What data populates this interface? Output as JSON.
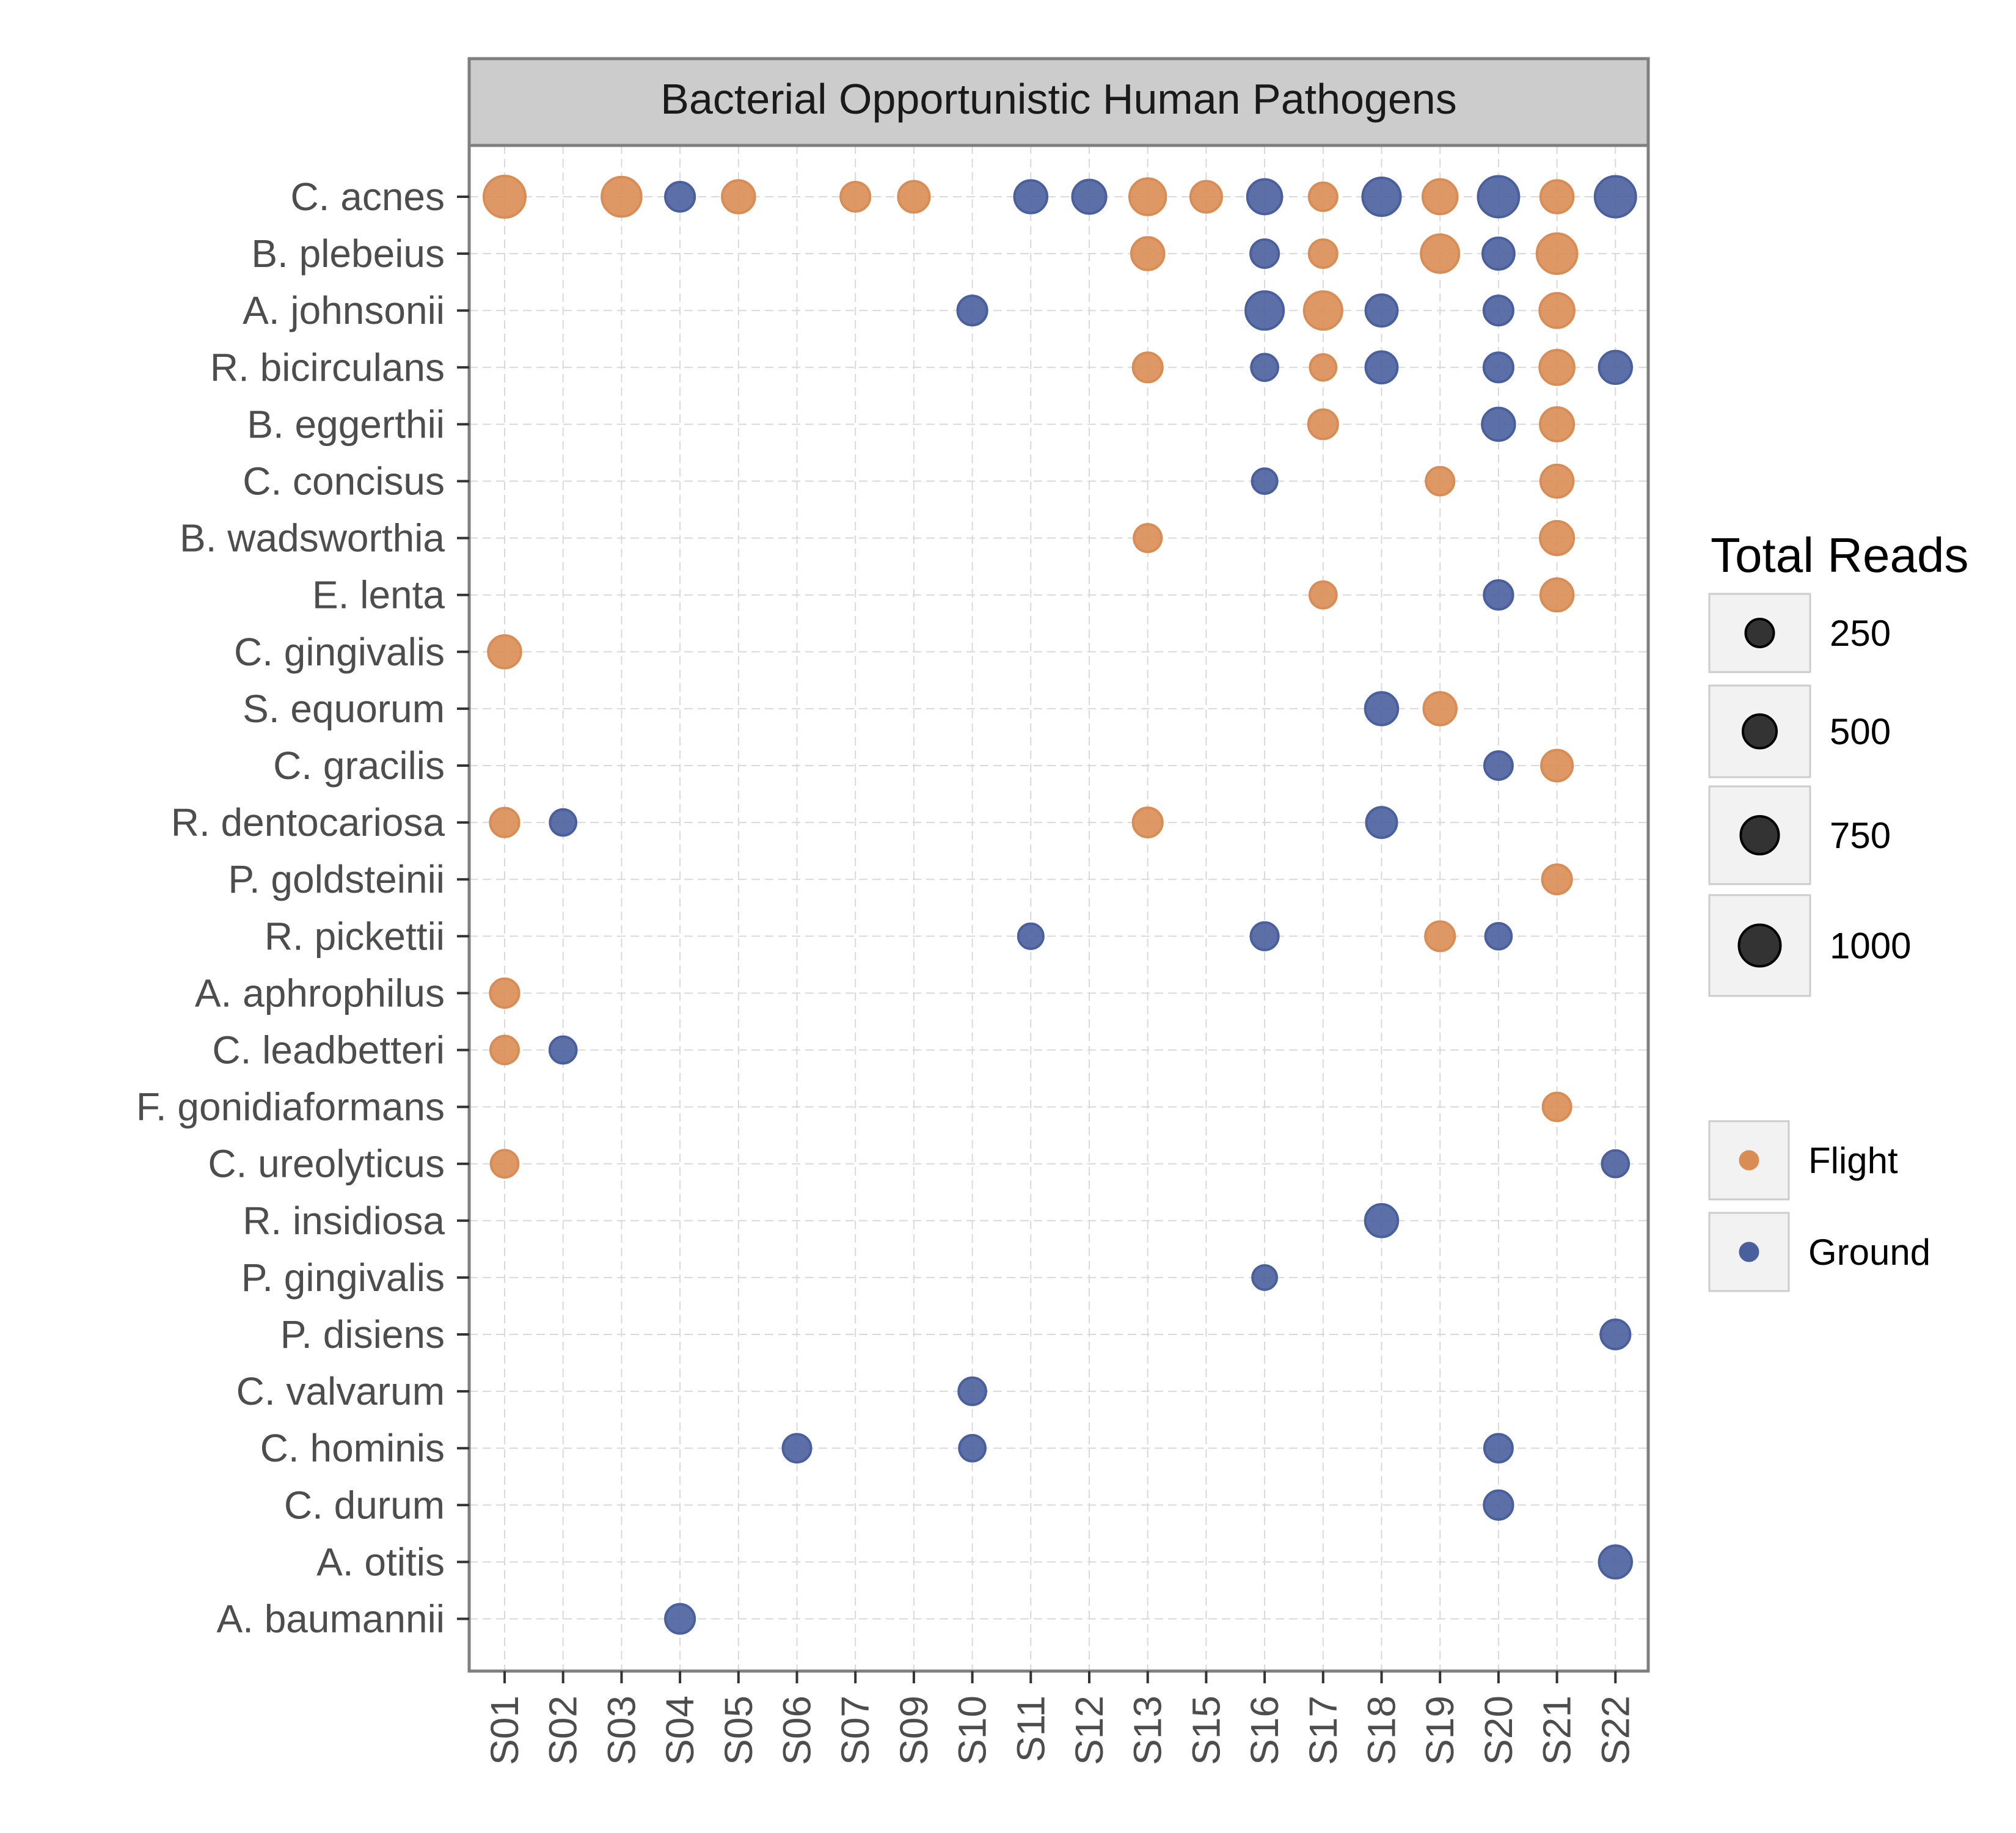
{
  "chart_data": {
    "type": "scatter",
    "title": "Bacterial Opportunistic Human Pathogens",
    "xlabel": "",
    "ylabel": "",
    "grid": true,
    "legend_placement": "right",
    "x_categories": [
      "S01",
      "S02",
      "S03",
      "S04",
      "S05",
      "S06",
      "S07",
      "S09",
      "S10",
      "S11",
      "S12",
      "S13",
      "S15",
      "S16",
      "S17",
      "S18",
      "S19",
      "S20",
      "S21",
      "S22"
    ],
    "y_categories": [
      "C. acnes",
      "B. plebeius",
      "A. johnsonii",
      "R. bicirculans",
      "B. eggerthii",
      "C. concisus",
      "B. wadsworthia",
      "E. lenta",
      "C. gingivalis",
      "S. equorum",
      "C. gracilis",
      "R. dentocariosa",
      "P. goldsteinii",
      "R. pickettii",
      "A. aphrophilus",
      "C. leadbetteri",
      "F. gonidiaformans",
      "C. ureolyticus",
      "R. insidiosa",
      "P. gingivalis",
      "P. disiens",
      "C. valvarum",
      "C. hominis",
      "C. durum",
      "A. otitis",
      "A. baumannii"
    ],
    "size_legend": {
      "title": "Total Reads",
      "values": [
        250,
        500,
        750,
        1000
      ],
      "labels": [
        "250",
        "500",
        "750",
        "1000"
      ],
      "color": "#333333"
    },
    "color_legend": [
      {
        "label": "Flight",
        "color": "#D98D55"
      },
      {
        "label": "Ground",
        "color": "#4A5F9D"
      }
    ],
    "series": [
      {
        "name": "Flight",
        "color": "#D98D55",
        "points": [
          {
            "x": "S01",
            "y": "C. acnes",
            "value": 1000
          },
          {
            "x": "S03",
            "y": "C. acnes",
            "value": 850
          },
          {
            "x": "S05",
            "y": "C. acnes",
            "value": 450
          },
          {
            "x": "S07",
            "y": "C. acnes",
            "value": 300
          },
          {
            "x": "S09",
            "y": "C. acnes",
            "value": 380
          },
          {
            "x": "S13",
            "y": "C. acnes",
            "value": 650
          },
          {
            "x": "S15",
            "y": "C. acnes",
            "value": 380
          },
          {
            "x": "S17",
            "y": "C. acnes",
            "value": 250
          },
          {
            "x": "S19",
            "y": "C. acnes",
            "value": 550
          },
          {
            "x": "S21",
            "y": "C. acnes",
            "value": 450
          },
          {
            "x": "S13",
            "y": "B. plebeius",
            "value": 450
          },
          {
            "x": "S17",
            "y": "B. plebeius",
            "value": 250
          },
          {
            "x": "S19",
            "y": "B. plebeius",
            "value": 750
          },
          {
            "x": "S21",
            "y": "B. plebeius",
            "value": 900
          },
          {
            "x": "S17",
            "y": "A. johnsonii",
            "value": 750
          },
          {
            "x": "S21",
            "y": "A. johnsonii",
            "value": 550
          },
          {
            "x": "S13",
            "y": "R. bicirculans",
            "value": 300
          },
          {
            "x": "S17",
            "y": "R. bicirculans",
            "value": 180
          },
          {
            "x": "S21",
            "y": "R. bicirculans",
            "value": 550
          },
          {
            "x": "S17",
            "y": "B. eggerthii",
            "value": 300
          },
          {
            "x": "S21",
            "y": "B. eggerthii",
            "value": 500
          },
          {
            "x": "S19",
            "y": "C. concisus",
            "value": 250
          },
          {
            "x": "S21",
            "y": "C. concisus",
            "value": 450
          },
          {
            "x": "S13",
            "y": "B. wadsworthia",
            "value": 230
          },
          {
            "x": "S21",
            "y": "B. wadsworthia",
            "value": 500
          },
          {
            "x": "S17",
            "y": "E. lenta",
            "value": 200
          },
          {
            "x": "S21",
            "y": "E. lenta",
            "value": 450
          },
          {
            "x": "S01",
            "y": "C. gingivalis",
            "value": 450
          },
          {
            "x": "S19",
            "y": "S. equorum",
            "value": 450
          },
          {
            "x": "S21",
            "y": "C. gracilis",
            "value": 380
          },
          {
            "x": "S01",
            "y": "R. dentocariosa",
            "value": 280
          },
          {
            "x": "S13",
            "y": "R. dentocariosa",
            "value": 300
          },
          {
            "x": "S21",
            "y": "P. goldsteinii",
            "value": 300
          },
          {
            "x": "S19",
            "y": "R. pickettii",
            "value": 300
          },
          {
            "x": "S01",
            "y": "A. aphrophilus",
            "value": 280
          },
          {
            "x": "S01",
            "y": "C. leadbetteri",
            "value": 250
          },
          {
            "x": "S21",
            "y": "F. gonidiaformans",
            "value": 250
          },
          {
            "x": "S01",
            "y": "C. ureolyticus",
            "value": 220
          }
        ]
      },
      {
        "name": "Ground",
        "color": "#4A5F9D",
        "points": [
          {
            "x": "S04",
            "y": "C. acnes",
            "value": 300
          },
          {
            "x": "S11",
            "y": "C. acnes",
            "value": 450
          },
          {
            "x": "S12",
            "y": "C. acnes",
            "value": 500
          },
          {
            "x": "S16",
            "y": "C. acnes",
            "value": 550
          },
          {
            "x": "S18",
            "y": "C. acnes",
            "value": 750
          },
          {
            "x": "S20",
            "y": "C. acnes",
            "value": 950
          },
          {
            "x": "S22",
            "y": "C. acnes",
            "value": 950
          },
          {
            "x": "S16",
            "y": "B. plebeius",
            "value": 250
          },
          {
            "x": "S20",
            "y": "B. plebeius",
            "value": 400
          },
          {
            "x": "S10",
            "y": "A. johnsonii",
            "value": 300
          },
          {
            "x": "S16",
            "y": "A. johnsonii",
            "value": 750
          },
          {
            "x": "S18",
            "y": "A. johnsonii",
            "value": 400
          },
          {
            "x": "S20",
            "y": "A. johnsonii",
            "value": 300
          },
          {
            "x": "S16",
            "y": "R. bicirculans",
            "value": 200
          },
          {
            "x": "S18",
            "y": "R. bicirculans",
            "value": 400
          },
          {
            "x": "S20",
            "y": "R. bicirculans",
            "value": 300
          },
          {
            "x": "S22",
            "y": "R. bicirculans",
            "value": 450
          },
          {
            "x": "S20",
            "y": "B. eggerthii",
            "value": 450
          },
          {
            "x": "S16",
            "y": "C. concisus",
            "value": 150
          },
          {
            "x": "S20",
            "y": "E. lenta",
            "value": 280
          },
          {
            "x": "S18",
            "y": "S. equorum",
            "value": 450
          },
          {
            "x": "S20",
            "y": "C. gracilis",
            "value": 250
          },
          {
            "x": "S02",
            "y": "R. dentocariosa",
            "value": 180
          },
          {
            "x": "S18",
            "y": "R. dentocariosa",
            "value": 350
          },
          {
            "x": "S11",
            "y": "R. pickettii",
            "value": 150
          },
          {
            "x": "S16",
            "y": "R. pickettii",
            "value": 230
          },
          {
            "x": "S20",
            "y": "R. pickettii",
            "value": 180
          },
          {
            "x": "S02",
            "y": "C. leadbetteri",
            "value": 200
          },
          {
            "x": "S22",
            "y": "C. ureolyticus",
            "value": 200
          },
          {
            "x": "S18",
            "y": "R. insidiosa",
            "value": 450
          },
          {
            "x": "S16",
            "y": "P. gingivalis",
            "value": 130
          },
          {
            "x": "S22",
            "y": "P. disiens",
            "value": 300
          },
          {
            "x": "S10",
            "y": "C. valvarum",
            "value": 220
          },
          {
            "x": "S06",
            "y": "C. hominis",
            "value": 250
          },
          {
            "x": "S10",
            "y": "C. hominis",
            "value": 180
          },
          {
            "x": "S20",
            "y": "C. hominis",
            "value": 250
          },
          {
            "x": "S20",
            "y": "C. durum",
            "value": 280
          },
          {
            "x": "S22",
            "y": "A. otitis",
            "value": 450
          },
          {
            "x": "S04",
            "y": "A. baumannii",
            "value": 300
          }
        ]
      }
    ]
  }
}
